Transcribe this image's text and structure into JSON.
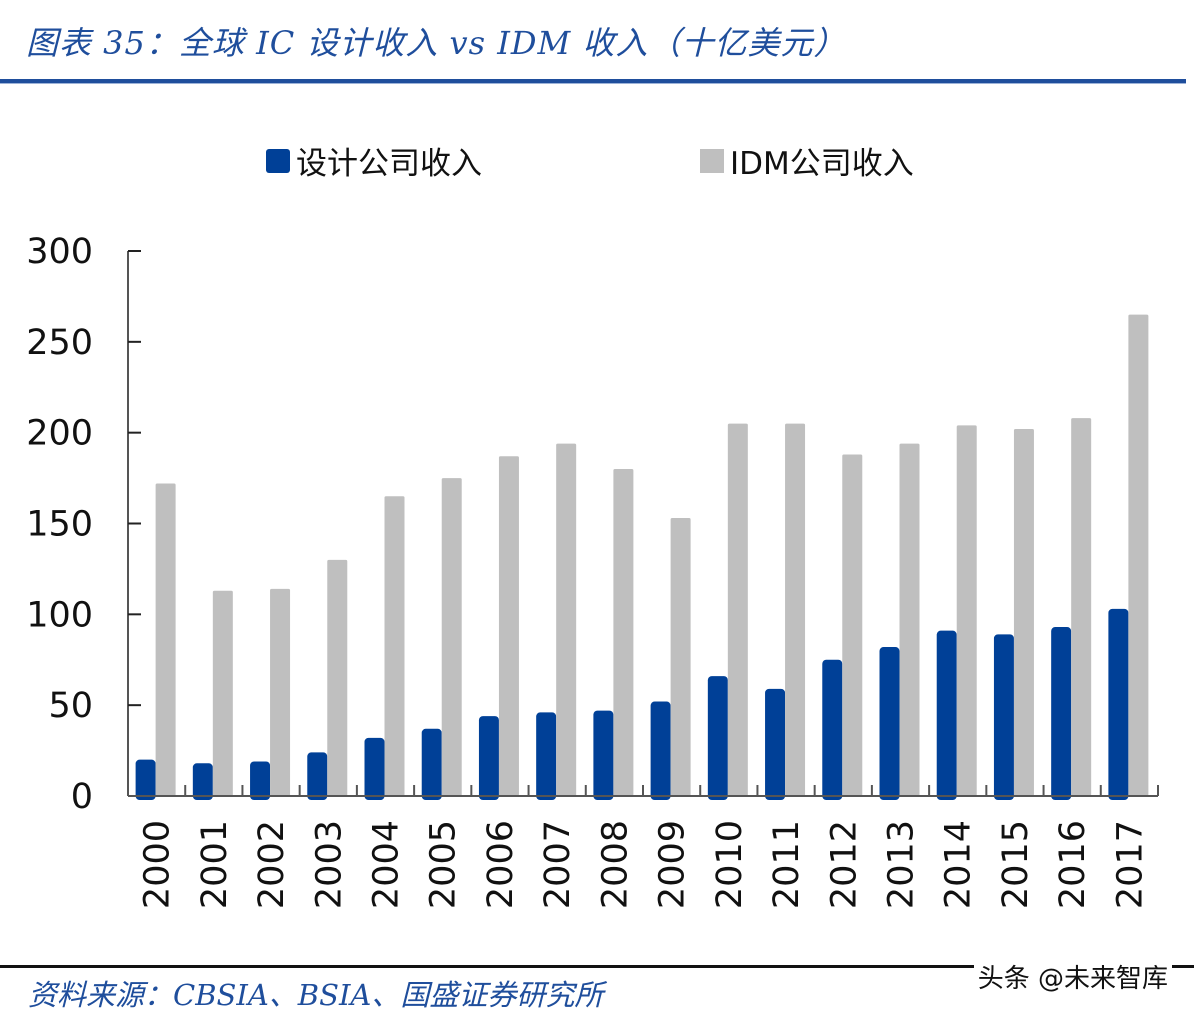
{
  "header": {
    "title": "图表 35：全球 IC 设计收入 vs IDM 收入（十亿美元）"
  },
  "footer": {
    "source": "资料来源：CBSIA、BSIA、国盛证券研究所",
    "watermark": "头条 @未来智库"
  },
  "colors": {
    "title": "#1f4e9c",
    "design": "#004097",
    "idm": "#bfbfbf",
    "axis": "#555555"
  },
  "chart_data": {
    "type": "bar",
    "title": "全球 IC 设计收入 vs IDM 收入（十亿美元）",
    "xlabel": "",
    "ylabel": "",
    "ylim": [
      0,
      300
    ],
    "yticks": [
      0,
      50,
      100,
      150,
      200,
      250,
      300
    ],
    "grid": false,
    "legend_position": "top-center",
    "categories": [
      "2000",
      "2001",
      "2002",
      "2003",
      "2004",
      "2005",
      "2006",
      "2007",
      "2008",
      "2009",
      "2010",
      "2011",
      "2012",
      "2013",
      "2014",
      "2015",
      "2016",
      "2017"
    ],
    "series": [
      {
        "name": "设计公司收入",
        "color": "#004097",
        "values": [
          20,
          18,
          19,
          24,
          32,
          37,
          44,
          46,
          47,
          52,
          66,
          59,
          75,
          82,
          91,
          89,
          93,
          103
        ]
      },
      {
        "name": "IDM公司收入",
        "color": "#bfbfbf",
        "values": [
          172,
          113,
          114,
          130,
          165,
          175,
          187,
          194,
          180,
          153,
          205,
          205,
          188,
          194,
          204,
          202,
          208,
          265
        ]
      }
    ]
  }
}
